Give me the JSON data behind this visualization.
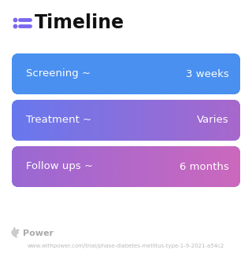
{
  "title": "Timeline",
  "background_color": "#ffffff",
  "rows": [
    {
      "label": "Screening ~",
      "value": "3 weeks",
      "color_left": "#4A90F0",
      "color_right": "#4A90F0"
    },
    {
      "label": "Treatment ~",
      "value": "Varies",
      "color_left": "#6878EE",
      "color_right": "#A868CC"
    },
    {
      "label": "Follow ups ~",
      "value": "6 months",
      "color_left": "#9A68D4",
      "color_right": "#CC68BE"
    }
  ],
  "footer_logo_text": "Power",
  "footer_url": "www.withpower.com/trial/phase-diabetes-mellitus-type-1-9-2021-a54c2",
  "title_fontsize": 17,
  "row_label_fontsize": 9.5,
  "row_value_fontsize": 9.5,
  "footer_fontsize": 5.0,
  "icon_color": "#7B68EE",
  "icon_line_color": "#7B68EE"
}
